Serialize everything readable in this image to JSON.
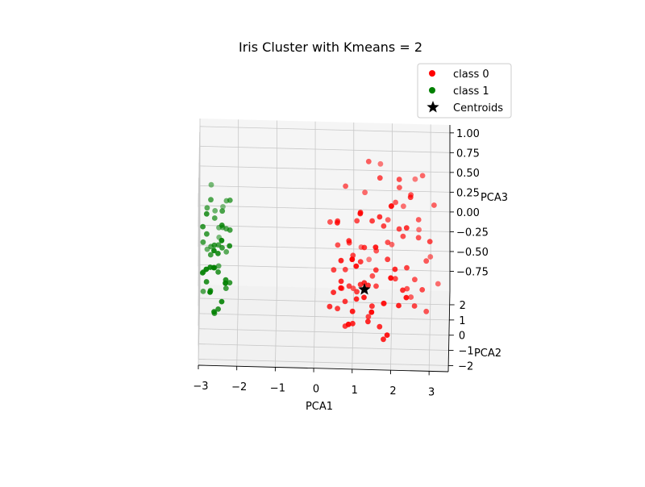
{
  "chart_data": {
    "type": "scatter",
    "projection": "3d",
    "title": "Iris Cluster with Kmeans = 2",
    "xlabel": "PCA1",
    "ylabel": "PCA2",
    "zlabel": "PCA3",
    "xlim": [
      -3,
      3.5
    ],
    "ylim": [
      -2.4,
      2.9
    ],
    "zlim": [
      -1.0,
      1.1
    ],
    "xticks": [
      "−3",
      "−2",
      "−1",
      "0",
      "1",
      "2",
      "3"
    ],
    "yticks": [
      "−2",
      "−1",
      "0",
      "1",
      "2"
    ],
    "zticks": [
      "−0.75",
      "−0.50",
      "−0.25",
      "0.00",
      "0.25",
      "0.50",
      "0.75",
      "1.00"
    ],
    "grid": true,
    "legend_position": "top-right",
    "series": [
      {
        "name": "class 0",
        "color": "#ff0000",
        "marker": "circle",
        "points": [
          [
            1.2,
            -0.2,
            -0.35
          ],
          [
            1.1,
            0.1,
            -0.5
          ],
          [
            1.4,
            -0.5,
            -0.3
          ],
          [
            0.9,
            0.2,
            -0.45
          ],
          [
            1.6,
            0.0,
            -0.2
          ],
          [
            2.0,
            0.6,
            0.5
          ],
          [
            2.2,
            0.8,
            0.8
          ],
          [
            1.8,
            0.3,
            0.3
          ],
          [
            2.5,
            1.1,
            0.55
          ],
          [
            2.7,
            1.3,
            0.2
          ],
          [
            0.8,
            -0.3,
            -0.55
          ],
          [
            1.0,
            0.4,
            -0.1
          ],
          [
            1.3,
            -0.1,
            0.1
          ],
          [
            0.6,
            0.0,
            -0.7
          ],
          [
            2.1,
            0.5,
            -0.4
          ],
          [
            2.4,
            0.9,
            -0.6
          ],
          [
            2.9,
            1.2,
            -0.3
          ],
          [
            3.1,
            1.5,
            0.35
          ],
          [
            1.7,
            -0.6,
            -0.8
          ],
          [
            1.5,
            0.1,
            0.4
          ],
          [
            0.7,
            -0.8,
            -0.2
          ],
          [
            1.9,
            0.2,
            -0.1
          ],
          [
            2.3,
            0.7,
            0.1
          ],
          [
            1.2,
            -0.4,
            0.6
          ],
          [
            0.5,
            -0.5,
            -0.4
          ],
          [
            1.0,
            -0.7,
            -0.75
          ],
          [
            2.6,
            1.0,
            -0.5
          ],
          [
            3.2,
            1.8,
            -0.7
          ],
          [
            1.4,
            0.3,
            -0.85
          ],
          [
            0.9,
            -0.2,
            0.2
          ],
          [
            1.8,
            -0.1,
            -0.6
          ],
          [
            2.2,
            0.4,
            0.25
          ],
          [
            1.1,
            -0.9,
            -0.4
          ],
          [
            0.6,
            0.3,
            0.35
          ],
          [
            1.6,
            0.5,
            -0.5
          ],
          [
            2.0,
            -0.2,
            0.65
          ],
          [
            2.8,
            1.6,
            0.7
          ],
          [
            1.3,
            -0.6,
            -0.25
          ],
          [
            0.8,
            0.5,
            -0.3
          ],
          [
            2.4,
            0.2,
            -0.2
          ],
          [
            1.5,
            -0.3,
            -0.6
          ],
          [
            0.7,
            -1.0,
            0.1
          ],
          [
            1.9,
            0.8,
            0.0
          ],
          [
            2.5,
            1.4,
            -0.8
          ],
          [
            1.2,
            0.0,
            -0.1
          ],
          [
            0.4,
            -0.4,
            -0.6
          ],
          [
            1.7,
            0.6,
            0.85
          ],
          [
            2.1,
            1.1,
            0.45
          ],
          [
            1.0,
            -1.2,
            -0.5
          ],
          [
            2.7,
            0.9,
            0.05
          ],
          [
            1.4,
            -0.8,
            -0.7
          ],
          [
            0.9,
            0.7,
            0.0
          ],
          [
            2.3,
            -0.5,
            -0.35
          ],
          [
            1.6,
            1.0,
            -0.15
          ],
          [
            3.0,
            2.0,
            -0.4
          ],
          [
            0.6,
            -0.6,
            0.5
          ],
          [
            1.8,
            -0.9,
            -0.9
          ],
          [
            2.2,
            1.3,
            0.6
          ],
          [
            1.1,
            0.6,
            0.3
          ],
          [
            2.6,
            0.3,
            -0.7
          ],
          [
            1.3,
            -1.3,
            -0.3
          ],
          [
            0.8,
            -0.1,
            -0.9
          ],
          [
            1.9,
            1.5,
            0.15
          ],
          [
            2.4,
            -0.3,
            0.4
          ],
          [
            1.5,
            0.9,
            -0.45
          ],
          [
            2.0,
            1.7,
            -0.2
          ],
          [
            1.2,
            -1.0,
            0.7
          ],
          [
            0.5,
            0.2,
            -0.25
          ],
          [
            2.8,
            0.6,
            -0.55
          ],
          [
            1.7,
            -0.4,
            0.55
          ],
          [
            1.0,
            1.1,
            -0.65
          ],
          [
            2.3,
            1.9,
            0.25
          ],
          [
            0.7,
            -1.5,
            -0.15
          ],
          [
            1.6,
            -1.1,
            0.3
          ],
          [
            2.1,
            -0.7,
            -0.05
          ],
          [
            1.4,
            1.4,
            0.9
          ],
          [
            0.9,
            -1.8,
            -0.55
          ],
          [
            2.5,
            -0.1,
            0.75
          ],
          [
            1.8,
            1.2,
            -0.85
          ],
          [
            0.6,
            0.8,
            -0.05
          ],
          [
            1.3,
            1.7,
            0.45
          ],
          [
            2.2,
            -1.0,
            -0.45
          ],
          [
            1.1,
            -1.6,
            0.15
          ],
          [
            2.7,
            2.2,
            -0.1
          ],
          [
            0.8,
            1.3,
            0.6
          ],
          [
            1.9,
            -1.4,
            -0.75
          ],
          [
            2.6,
            2.4,
            0.5
          ],
          [
            1.5,
            -2.0,
            -0.35
          ],
          [
            0.4,
            1.0,
            0.2
          ],
          [
            3.0,
            0.4,
            0.1
          ],
          [
            1.2,
            2.0,
            -0.3
          ],
          [
            2.0,
            -1.8,
            0.05
          ],
          [
            0.7,
            1.6,
            -0.75
          ],
          [
            1.7,
            2.3,
            0.7
          ],
          [
            2.4,
            -1.5,
            -0.25
          ],
          [
            1.0,
            -2.2,
            0.35
          ],
          [
            2.9,
            1.0,
            -0.9
          ],
          [
            1.4,
            2.5,
            -0.55
          ]
        ]
      },
      {
        "name": "class 1",
        "color": "#008000",
        "marker": "circle",
        "points": [
          [
            -2.6,
            -0.2,
            0.1
          ],
          [
            -2.7,
            0.2,
            -0.1
          ],
          [
            -2.5,
            -0.4,
            -0.2
          ],
          [
            -2.8,
            0.0,
            0.2
          ],
          [
            -2.6,
            0.4,
            -0.3
          ],
          [
            -2.4,
            -0.1,
            0.05
          ],
          [
            -2.7,
            -0.6,
            -0.4
          ],
          [
            -2.5,
            0.6,
            -0.05
          ],
          [
            -2.9,
            -0.3,
            0.35
          ],
          [
            -2.3,
            0.1,
            -0.5
          ],
          [
            -2.6,
            0.8,
            0.25
          ],
          [
            -2.8,
            -0.8,
            -0.25
          ],
          [
            -2.4,
            0.5,
            0.4
          ],
          [
            -2.7,
            1.0,
            -0.15
          ],
          [
            -2.5,
            -1.0,
            0.15
          ],
          [
            -2.2,
            -0.3,
            -0.35
          ],
          [
            -2.9,
            0.5,
            0.0
          ],
          [
            -2.3,
            0.9,
            0.1
          ],
          [
            -2.6,
            -1.2,
            -0.55
          ],
          [
            -2.8,
            1.2,
            0.3
          ],
          [
            -2.4,
            -0.7,
            0.45
          ],
          [
            -2.7,
            -1.4,
            0.05
          ],
          [
            -2.5,
            1.3,
            -0.45
          ],
          [
            -2.2,
            0.3,
            0.2
          ],
          [
            -2.9,
            -1.0,
            -0.1
          ],
          [
            -2.4,
            1.5,
            0.0
          ],
          [
            -2.6,
            -1.6,
            0.3
          ],
          [
            -2.3,
            -0.9,
            -0.2
          ],
          [
            -2.8,
            1.6,
            -0.3
          ],
          [
            -2.5,
            -0.5,
            -0.65
          ],
          [
            -2.7,
            0.7,
            0.5
          ],
          [
            -2.3,
            1.2,
            -0.25
          ],
          [
            -2.6,
            1.8,
            0.15
          ],
          [
            -2.4,
            -1.3,
            -0.4
          ],
          [
            -2.8,
            -1.8,
            0.1
          ],
          [
            -2.5,
            2.0,
            -0.1
          ],
          [
            -2.2,
            -1.0,
            0.25
          ],
          [
            -2.7,
            2.2,
            0.4
          ],
          [
            -2.9,
            1.4,
            -0.55
          ],
          [
            -2.4,
            -1.7,
            0.45
          ],
          [
            -2.6,
            0.0,
            -0.8
          ],
          [
            -2.3,
            1.7,
            0.3
          ],
          [
            -2.8,
            -0.5,
            0.55
          ],
          [
            -2.5,
            2.4,
            -0.3
          ],
          [
            -2.7,
            -2.0,
            -0.15
          ],
          [
            -2.2,
            0.7,
            0.5
          ],
          [
            -2.6,
            -2.2,
            0.2
          ],
          [
            -2.4,
            2.6,
            0.05
          ],
          [
            -2.9,
            0.9,
            -0.7
          ],
          [
            -2.3,
            -1.9,
            -0.05
          ]
        ]
      }
    ],
    "centroids": {
      "name": "Centroids",
      "color": "#000000",
      "marker": "star",
      "points": [
        [
          1.3,
          0.0,
          -0.45
        ]
      ]
    },
    "view": {
      "elev": 18,
      "azim": -85
    }
  }
}
